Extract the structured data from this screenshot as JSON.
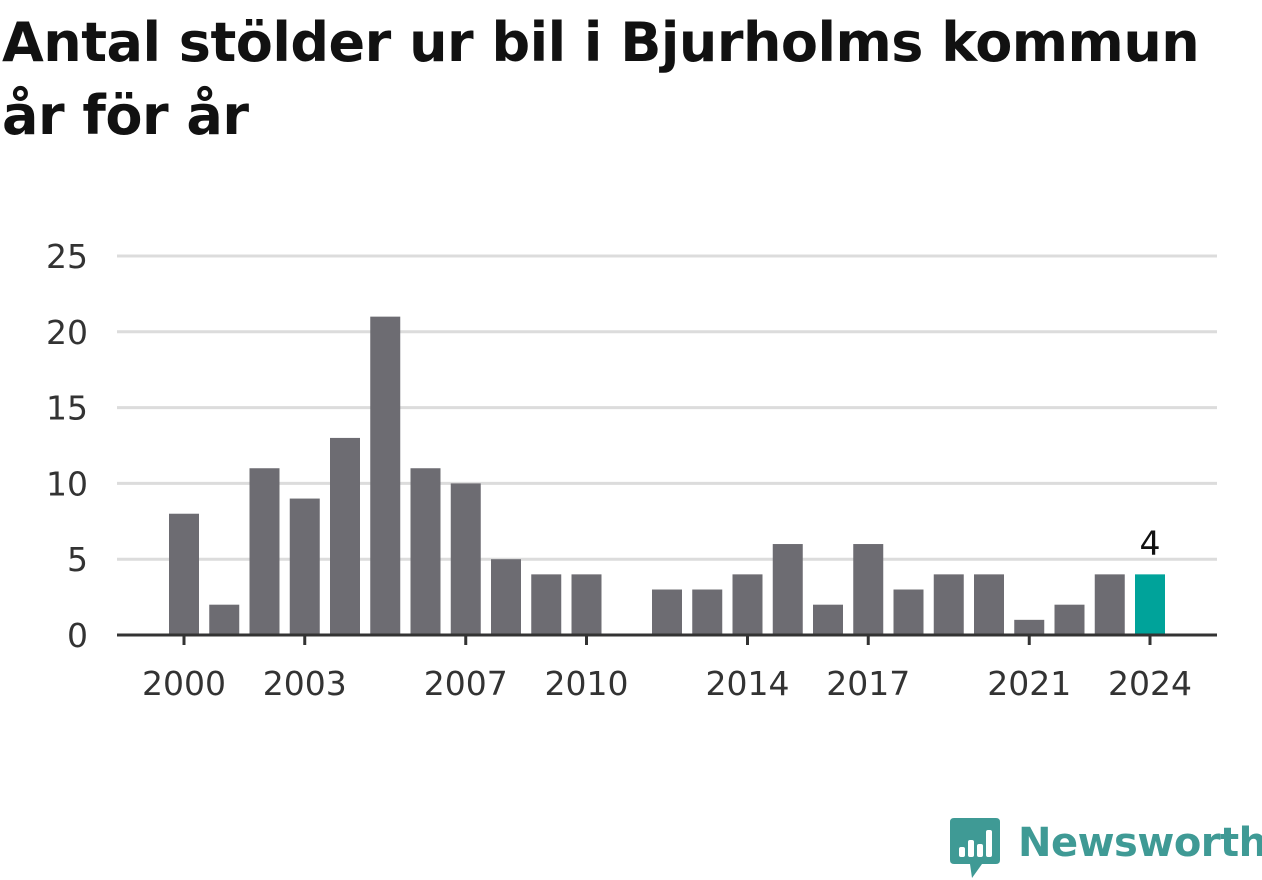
{
  "title": "Antal stölder ur bil i Bjurholms kommun år för år",
  "brand": {
    "name": "Newsworthy",
    "icon": "newsworthy-logo-icon",
    "color": "#3f9a95"
  },
  "colors": {
    "bar": "#6d6c72",
    "highlight": "#00a39a",
    "grid": "#dcdcdc",
    "axis": "#333333"
  },
  "chart_data": {
    "type": "bar",
    "categories": [
      "2000",
      "2001",
      "2002",
      "2003",
      "2004",
      "2005",
      "2006",
      "2007",
      "2008",
      "2009",
      "2010",
      "2011",
      "2012",
      "2013",
      "2014",
      "2015",
      "2016",
      "2017",
      "2018",
      "2019",
      "2020",
      "2021",
      "2022",
      "2023",
      "2024"
    ],
    "values": [
      8,
      2,
      11,
      9,
      13,
      21,
      11,
      10,
      5,
      4,
      4,
      0,
      3,
      3,
      4,
      6,
      2,
      6,
      3,
      4,
      4,
      1,
      2,
      4,
      4
    ],
    "highlight_index": 24,
    "data_labels": [
      {
        "category": "2024",
        "text": "4"
      }
    ],
    "x_tick_labels": [
      "2000",
      "2003",
      "2007",
      "2010",
      "2014",
      "2017",
      "2021",
      "2024"
    ],
    "y_ticks": [
      0,
      5,
      10,
      15,
      20,
      25
    ],
    "ylim": [
      0,
      25
    ],
    "xlabel": "",
    "ylabel": "",
    "grid": true,
    "legend": "none"
  }
}
